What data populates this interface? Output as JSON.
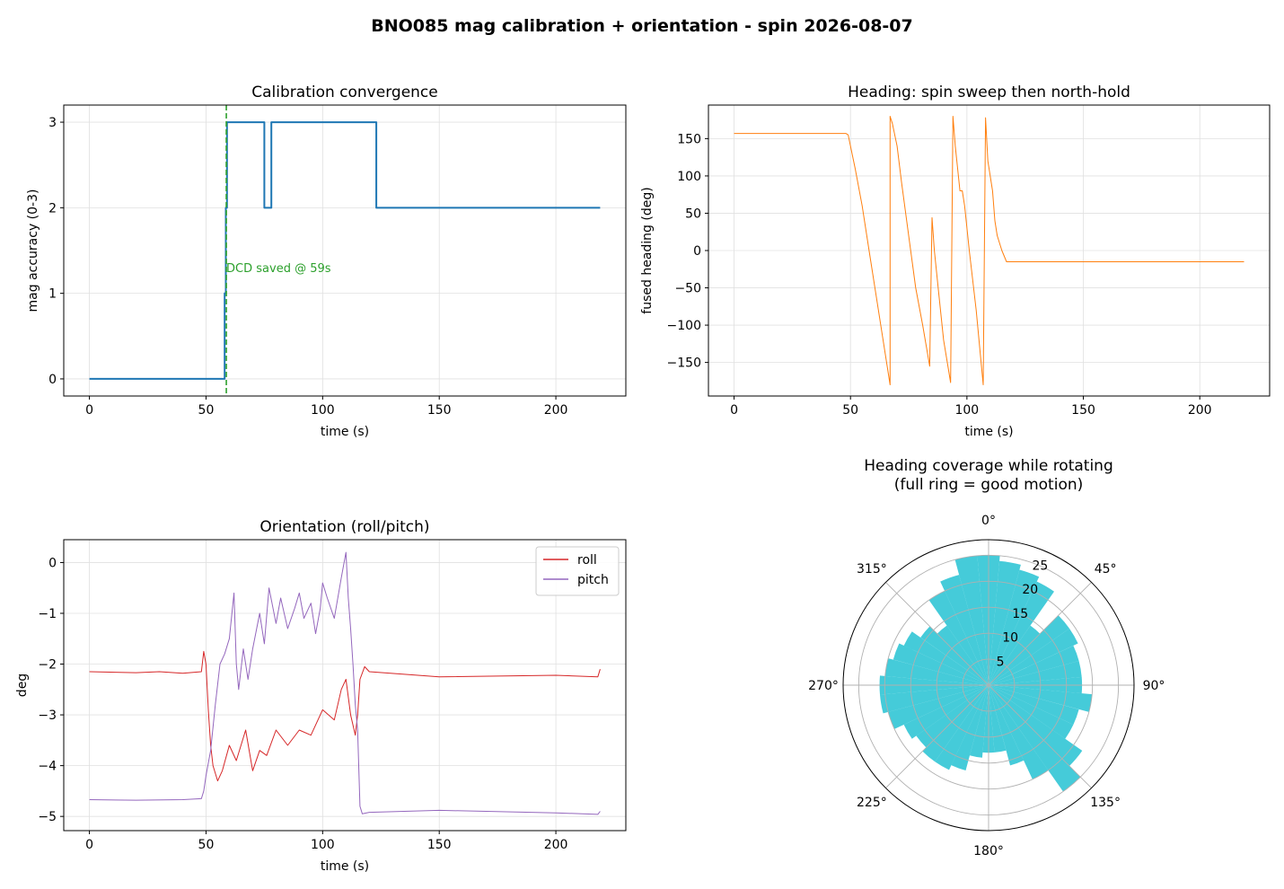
{
  "figure_title": "BNO085 mag calibration + orientation - spin 2026-08-07",
  "chart_data": [
    {
      "type": "line",
      "title": "Calibration convergence",
      "xlabel": "time (s)",
      "ylabel": "mag accuracy (0-3)",
      "xlim": [
        -11,
        230
      ],
      "ylim": [
        -0.2,
        3.2
      ],
      "xticks": [
        0,
        50,
        100,
        150,
        200
      ],
      "yticks": [
        0,
        1,
        2,
        3
      ],
      "grid": true,
      "series": [
        {
          "color": "#1f77b4",
          "step": true,
          "x": [
            0,
            58,
            58,
            58.5,
            58.5,
            59,
            59,
            75,
            75,
            78,
            78,
            123,
            123,
            219
          ],
          "y": [
            0,
            0,
            1,
            1,
            2,
            2,
            3,
            3,
            2,
            2,
            3,
            3,
            2,
            2
          ]
        }
      ],
      "vline": {
        "x": 58.7,
        "color": "#2ca02c",
        "style": "dashed"
      },
      "annotation": {
        "text": "DCD saved @ 59s",
        "x": 58.7,
        "y": 1.3,
        "color": "#2ca02c"
      }
    },
    {
      "type": "line",
      "title": "Heading: spin sweep then north-hold",
      "xlabel": "time (s)",
      "ylabel": "fused heading (deg)",
      "xlim": [
        -11,
        230
      ],
      "ylim": [
        -195,
        195
      ],
      "xticks": [
        0,
        50,
        100,
        150,
        200
      ],
      "yticks": [
        -150,
        -100,
        -50,
        0,
        50,
        100,
        150
      ],
      "grid": true,
      "series": [
        {
          "color": "#ff7f0e",
          "x": [
            0,
            48,
            49,
            50,
            52,
            55,
            58,
            61,
            64,
            67,
            67,
            68,
            70,
            72,
            75,
            78,
            81,
            84,
            85,
            85,
            86,
            88,
            90,
            93,
            94,
            94,
            95,
            97,
            98,
            99,
            101,
            104,
            107,
            108,
            108,
            109,
            111,
            112,
            113,
            115,
            117,
            120,
            130,
            219
          ],
          "y": [
            157,
            157,
            155,
            140,
            110,
            60,
            0,
            -60,
            -120,
            -180,
            180,
            170,
            140,
            90,
            20,
            -50,
            -100,
            -155,
            44,
            44,
            0,
            -60,
            -120,
            -177,
            180,
            180,
            140,
            80,
            80,
            60,
            0,
            -80,
            -180,
            178,
            178,
            120,
            80,
            40,
            20,
            0,
            -15,
            -15,
            -15,
            -15
          ]
        }
      ]
    },
    {
      "type": "line",
      "title": "Orientation (roll/pitch)",
      "xlabel": "time (s)",
      "ylabel": "deg",
      "xlim": [
        -11,
        230
      ],
      "ylim": [
        -5.28,
        0.45
      ],
      "xticks": [
        0,
        50,
        100,
        150,
        200
      ],
      "yticks": [
        -5,
        -4,
        -3,
        -2,
        -1,
        0
      ],
      "grid": true,
      "legend": "top-right",
      "series": [
        {
          "name": "roll",
          "color": "#d62728",
          "x": [
            0,
            20,
            30,
            40,
            48,
            49,
            50,
            51,
            52,
            53,
            55,
            57,
            60,
            63,
            67,
            70,
            73,
            76,
            80,
            85,
            90,
            95,
            100,
            105,
            108,
            110,
            112,
            114,
            115,
            116,
            118,
            120,
            150,
            200,
            218,
            219
          ],
          "y": [
            -2.15,
            -2.17,
            -2.15,
            -2.18,
            -2.15,
            -1.75,
            -2.0,
            -2.9,
            -3.6,
            -4.0,
            -4.3,
            -4.1,
            -3.6,
            -3.9,
            -3.3,
            -4.1,
            -3.7,
            -3.8,
            -3.3,
            -3.6,
            -3.3,
            -3.4,
            -2.9,
            -3.1,
            -2.5,
            -2.3,
            -3.0,
            -3.4,
            -3.0,
            -2.3,
            -2.05,
            -2.15,
            -2.25,
            -2.22,
            -2.25,
            -2.1
          ]
        },
        {
          "name": "pitch",
          "color": "#9467bd",
          "x": [
            0,
            20,
            40,
            48,
            49,
            50,
            52,
            54,
            56,
            58,
            60,
            62,
            63,
            64,
            66,
            68,
            70,
            73,
            75,
            77,
            80,
            82,
            85,
            88,
            90,
            92,
            95,
            97,
            99,
            100,
            102,
            105,
            108,
            110,
            111,
            112,
            113,
            114,
            115,
            116,
            117,
            120,
            150,
            200,
            218,
            219
          ],
          "y": [
            -4.67,
            -4.68,
            -4.67,
            -4.65,
            -4.5,
            -4.2,
            -3.7,
            -2.8,
            -2.0,
            -1.8,
            -1.5,
            -0.6,
            -2.0,
            -2.5,
            -1.7,
            -2.3,
            -1.7,
            -1.0,
            -1.6,
            -0.5,
            -1.2,
            -0.7,
            -1.3,
            -0.9,
            -0.6,
            -1.1,
            -0.8,
            -1.4,
            -0.9,
            -0.4,
            -0.7,
            -1.1,
            -0.3,
            0.2,
            -0.7,
            -1.3,
            -2.0,
            -2.8,
            -3.3,
            -4.8,
            -4.95,
            -4.92,
            -4.88,
            -4.93,
            -4.96,
            -4.9
          ]
        }
      ]
    },
    {
      "type": "polar-histogram",
      "title": "Heading coverage while rotating\n(full ring = good motion)",
      "theta_direction": "clockwise",
      "theta_zero": "north",
      "angle_labels": [
        "0°",
        "45°",
        "90°",
        "135°",
        "180°",
        "225°",
        "270°",
        "315°"
      ],
      "radial_ticks": [
        5,
        10,
        15,
        20,
        25
      ],
      "rmax": 28,
      "bin_width_deg": 10,
      "color": "#17becf",
      "grid": true,
      "bins": [
        {
          "theta": 0,
          "r": 25
        },
        {
          "theta": 10,
          "r": 24
        },
        {
          "theta": 20,
          "r": 23
        },
        {
          "theta": 30,
          "r": 22
        },
        {
          "theta": 40,
          "r": 14
        },
        {
          "theta": 50,
          "r": 19
        },
        {
          "theta": 60,
          "r": 19
        },
        {
          "theta": 70,
          "r": 18
        },
        {
          "theta": 80,
          "r": 18
        },
        {
          "theta": 90,
          "r": 18
        },
        {
          "theta": 100,
          "r": 20
        },
        {
          "theta": 110,
          "r": 18
        },
        {
          "theta": 120,
          "r": 18
        },
        {
          "theta": 130,
          "r": 22
        },
        {
          "theta": 140,
          "r": 25
        },
        {
          "theta": 150,
          "r": 20
        },
        {
          "theta": 160,
          "r": 16
        },
        {
          "theta": 170,
          "r": 13
        },
        {
          "theta": 180,
          "r": 13
        },
        {
          "theta": 190,
          "r": 14
        },
        {
          "theta": 200,
          "r": 17
        },
        {
          "theta": 210,
          "r": 18
        },
        {
          "theta": 220,
          "r": 18
        },
        {
          "theta": 230,
          "r": 17
        },
        {
          "theta": 240,
          "r": 18
        },
        {
          "theta": 250,
          "r": 20
        },
        {
          "theta": 260,
          "r": 21
        },
        {
          "theta": 270,
          "r": 21
        },
        {
          "theta": 280,
          "r": 20
        },
        {
          "theta": 290,
          "r": 19
        },
        {
          "theta": 300,
          "r": 18
        },
        {
          "theta": 310,
          "r": 16
        },
        {
          "theta": 320,
          "r": 14
        },
        {
          "theta": 330,
          "r": 20
        },
        {
          "theta": 340,
          "r": 22
        },
        {
          "theta": 350,
          "r": 25
        }
      ]
    }
  ]
}
